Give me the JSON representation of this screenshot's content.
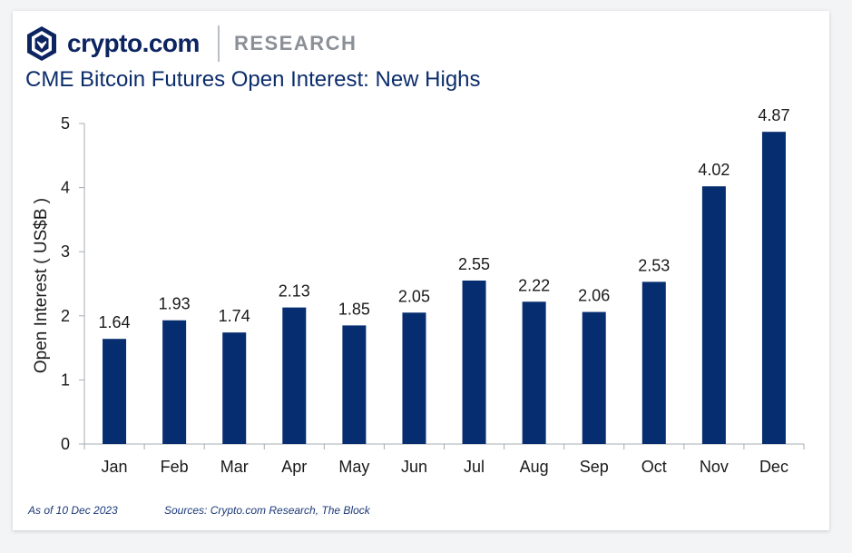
{
  "header": {
    "brand": "crypto.com",
    "section": "RESEARCH",
    "logo_icon": "crypto-com-lion-shield-icon"
  },
  "chart_data": {
    "type": "bar",
    "title": "CME Bitcoin Futures Open Interest: New Highs",
    "ylabel": "Open Interest ( US$B )",
    "xlabel": "",
    "categories": [
      "Jan",
      "Feb",
      "Mar",
      "Apr",
      "May",
      "Jun",
      "Jul",
      "Aug",
      "Sep",
      "Oct",
      "Nov",
      "Dec"
    ],
    "values": [
      1.64,
      1.93,
      1.74,
      2.13,
      1.85,
      2.05,
      2.55,
      2.22,
      2.06,
      2.53,
      4.02,
      4.87
    ],
    "value_labels": [
      "1.64",
      "1.93",
      "1.74",
      "2.13",
      "1.85",
      "2.05",
      "2.55",
      "2.22",
      "2.06",
      "2.53",
      "4.02",
      "4.87"
    ],
    "ylim": [
      0,
      5
    ],
    "yticks": [
      "0",
      "1",
      "2",
      "3",
      "4",
      "5"
    ],
    "grid": false,
    "bar_color": "#062d6f"
  },
  "footer": {
    "as_of": "As of 10 Dec 2023",
    "sources": "Sources: Crypto.com Research, The Block"
  }
}
